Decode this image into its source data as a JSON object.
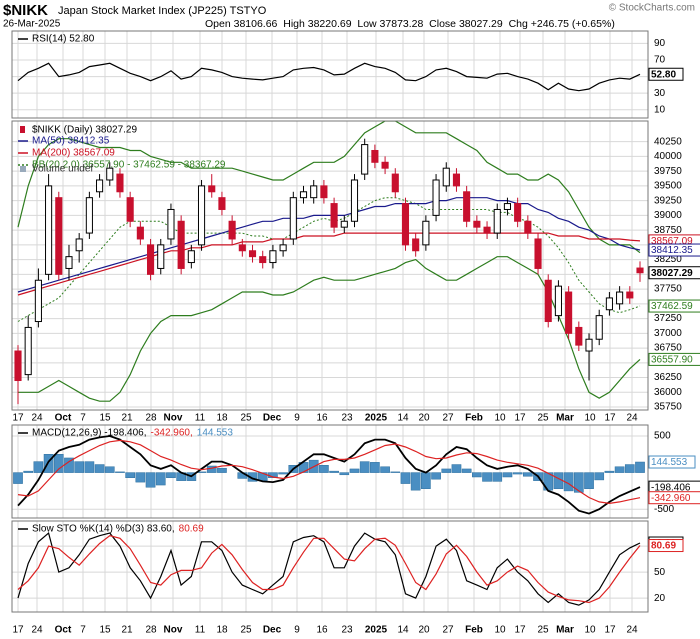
{
  "header": {
    "symbol": "$NIKK",
    "name": "Japan Stock Market Index (JP225) TSTYO",
    "date": "26-Mar-2025",
    "quote": "Open 38106.66  High 38220.69  Low 37873.28  Close 38027.29  Chg +246.75 (+0.65%)",
    "credit": "© StockCharts.com"
  },
  "dates": [
    "17",
    "24",
    "Oct",
    "7",
    "15",
    "21",
    "28",
    "Nov",
    "11",
    "18",
    "25",
    "Dec",
    "9",
    "16",
    "23",
    "2025",
    "14",
    "20",
    "27",
    "Feb",
    "10",
    "17",
    "25",
    "Mar",
    "10",
    "17",
    "24"
  ],
  "chart_data": [
    {
      "type": "line",
      "ylim": [
        0,
        105
      ],
      "yticks": [
        90,
        70,
        50,
        30,
        10
      ],
      "series": [
        {
          "name": "RSI(14) 52.80",
          "color": "#000000",
          "value_label": "52.80",
          "values": [
            45,
            55,
            60,
            66,
            50,
            52,
            55,
            62,
            64,
            66,
            60,
            54,
            50,
            45,
            50,
            57,
            47,
            50,
            60,
            58,
            55,
            50,
            48,
            47,
            46,
            48,
            50,
            58,
            60,
            61,
            58,
            52,
            53,
            60,
            66,
            62,
            60,
            55,
            46,
            45,
            50,
            58,
            60,
            56,
            50,
            49,
            48,
            53,
            54,
            50,
            47,
            42,
            34,
            42,
            35,
            33,
            35,
            42,
            46,
            48,
            47,
            52.8
          ]
        }
      ]
    },
    {
      "type": "candlestick",
      "name": "$NIKK (Daily) 38027.29",
      "up_color": "#000000",
      "down_color": "#c8102e",
      "volume": "Volume undef",
      "ylim": [
        35700,
        40600
      ],
      "yticks": [
        40250,
        40000,
        39750,
        39500,
        39250,
        39000,
        38750,
        38500,
        38250,
        38000,
        37750,
        37500,
        37250,
        37000,
        36750,
        36500,
        36250,
        36000,
        35750
      ],
      "open": [
        36700,
        36300,
        37200,
        38000,
        39300,
        38100,
        38400,
        38700,
        39400,
        39600,
        39700,
        39300,
        38800,
        38500,
        38100,
        38600,
        38900,
        38200,
        38500,
        39500,
        39300,
        38900,
        38500,
        38400,
        38300,
        38200,
        38400,
        38600,
        39300,
        39300,
        39500,
        39200,
        38800,
        38900,
        39700,
        40100,
        39900,
        39700,
        39200,
        38600,
        38500,
        39000,
        39500,
        39700,
        39400,
        38900,
        38800,
        38700,
        39100,
        39200,
        38900,
        38600,
        37900,
        37300,
        37700,
        37100,
        36700,
        36900,
        37400,
        37500,
        37700,
        38106.66
      ],
      "high": [
        36800,
        37300,
        38100,
        39700,
        39400,
        38500,
        38700,
        39400,
        39700,
        39900,
        39800,
        39400,
        38900,
        38600,
        38600,
        39200,
        39000,
        38500,
        39600,
        39700,
        39400,
        39000,
        38600,
        38500,
        38400,
        38500,
        38600,
        39400,
        39500,
        39600,
        39600,
        39300,
        39000,
        39700,
        40300,
        40200,
        40000,
        39800,
        39300,
        38700,
        39000,
        39700,
        39900,
        39800,
        39500,
        39000,
        38900,
        39200,
        39300,
        39300,
        39000,
        38700,
        38000,
        37900,
        37800,
        37200,
        37000,
        37400,
        37700,
        37800,
        37800,
        38220.69
      ],
      "low": [
        35800,
        36200,
        37100,
        37900,
        37900,
        37900,
        38200,
        38600,
        39300,
        39500,
        39300,
        38800,
        38500,
        37900,
        38000,
        38500,
        38000,
        38100,
        38400,
        39300,
        39000,
        38500,
        38300,
        38200,
        38100,
        38100,
        38300,
        38500,
        39200,
        39200,
        39200,
        38700,
        38700,
        38800,
        39600,
        39800,
        39700,
        39300,
        38400,
        38300,
        38400,
        38900,
        39400,
        39400,
        38800,
        38700,
        38600,
        38600,
        39000,
        38800,
        38600,
        38000,
        37100,
        37200,
        36900,
        36700,
        36200,
        36800,
        37300,
        37400,
        37500,
        37873.28
      ],
      "close": [
        36200,
        37100,
        37900,
        39500,
        38000,
        38300,
        38600,
        39300,
        39600,
        39800,
        39400,
        38900,
        38600,
        38000,
        38500,
        39100,
        38100,
        38400,
        39500,
        39400,
        39100,
        38600,
        38400,
        38300,
        38200,
        38400,
        38500,
        39300,
        39400,
        39500,
        39300,
        38800,
        38900,
        39600,
        40200,
        39900,
        39800,
        39400,
        38500,
        38400,
        38900,
        39600,
        39800,
        39500,
        38900,
        38800,
        38700,
        39100,
        39200,
        38900,
        38700,
        38100,
        37200,
        37800,
        37000,
        36800,
        36900,
        37300,
        37600,
        37700,
        37600,
        38027.29
      ],
      "series": [
        {
          "name": "MA(50) 38412.35",
          "color": "#1a1a8c",
          "values": [
            37700,
            37750,
            37800,
            37850,
            37900,
            37950,
            38000,
            38050,
            38100,
            38150,
            38200,
            38250,
            38300,
            38350,
            38400,
            38450,
            38500,
            38550,
            38600,
            38650,
            38700,
            38750,
            38800,
            38850,
            38900,
            38900,
            38950,
            38950,
            38950,
            39000,
            39000,
            39000,
            39000,
            39050,
            39100,
            39150,
            39150,
            39200,
            39200,
            39200,
            39200,
            39250,
            39250,
            39300,
            39300,
            39300,
            39300,
            39250,
            39250,
            39200,
            39200,
            39100,
            39050,
            38950,
            38900,
            38800,
            38750,
            38650,
            38600,
            38500,
            38450,
            38412.35
          ]
        },
        {
          "name": "MA(200) 38567.09",
          "color": "#cc1122",
          "values": [
            37650,
            37700,
            37750,
            37800,
            37850,
            37900,
            37950,
            38000,
            38050,
            38100,
            38150,
            38200,
            38250,
            38300,
            38350,
            38400,
            38400,
            38450,
            38450,
            38500,
            38500,
            38500,
            38550,
            38550,
            38550,
            38600,
            38600,
            38600,
            38650,
            38650,
            38650,
            38650,
            38700,
            38700,
            38700,
            38700,
            38700,
            38700,
            38700,
            38700,
            38700,
            38700,
            38700,
            38700,
            38700,
            38700,
            38700,
            38700,
            38700,
            38700,
            38700,
            38700,
            38700,
            38650,
            38650,
            38650,
            38600,
            38600,
            38600,
            38600,
            38580,
            38567.09
          ]
        }
      ],
      "bands": {
        "name": "BB(20,2.0) 36557.90 - 37462.59 - 38367.29",
        "color": "#2e7d1e",
        "value_labels": {
          "middle": "37462.59",
          "lower": "36557.90"
        },
        "upper": [
          38800,
          39500,
          40000,
          40200,
          40300,
          40300,
          40250,
          40200,
          40150,
          40150,
          40150,
          40100,
          40100,
          40000,
          39950,
          39900,
          39900,
          39800,
          39800,
          39800,
          39800,
          39800,
          39750,
          39700,
          39650,
          39600,
          39600,
          39700,
          39800,
          39900,
          39900,
          39900,
          40000,
          40200,
          40400,
          40500,
          40600,
          40600,
          40500,
          40400,
          40400,
          40400,
          40400,
          40300,
          40200,
          40100,
          39900,
          39800,
          39700,
          39700,
          39600,
          39600,
          39700,
          39600,
          39400,
          39100,
          38800,
          38600,
          38500,
          38500,
          38500,
          38367.29
        ],
        "middle": [
          37200,
          37300,
          37400,
          37500,
          37600,
          37800,
          38000,
          38200,
          38400,
          38600,
          38800,
          38900,
          38900,
          38900,
          38900,
          38800,
          38700,
          38700,
          38700,
          38700,
          38700,
          38700,
          38700,
          38650,
          38650,
          38600,
          38600,
          38700,
          38800,
          38900,
          38950,
          38900,
          38950,
          39050,
          39150,
          39250,
          39300,
          39300,
          39250,
          39200,
          39100,
          39100,
          39100,
          39100,
          39100,
          39100,
          39100,
          39050,
          39050,
          38950,
          38900,
          38800,
          38650,
          38450,
          38200,
          37900,
          37700,
          37500,
          37400,
          37350,
          37400,
          37462.59
        ],
        "lower": [
          36000,
          36000,
          36000,
          36100,
          36200,
          36100,
          36000,
          35900,
          35850,
          35850,
          36000,
          36300,
          36700,
          37000,
          37200,
          37300,
          37300,
          37300,
          37350,
          37400,
          37500,
          37600,
          37700,
          37700,
          37700,
          37650,
          37650,
          37700,
          37800,
          37900,
          37950,
          37900,
          37900,
          37900,
          37950,
          38000,
          38050,
          38100,
          38200,
          38250,
          38100,
          38000,
          37900,
          37900,
          38000,
          38100,
          38200,
          38300,
          38300,
          38200,
          38100,
          38000,
          37700,
          37300,
          36900,
          36400,
          36000,
          35900,
          36000,
          36200,
          36400,
          36557.9
        ]
      }
    },
    {
      "type": "macd",
      "ylim": [
        -620,
        650
      ],
      "yticks": [
        500,
        -500
      ],
      "series": [
        {
          "name": "MACD(12,26,9) -198.406,",
          "color": "#000000",
          "values": [
            -450,
            -300,
            -100,
            150,
            300,
            350,
            380,
            450,
            480,
            500,
            450,
            350,
            250,
            100,
            50,
            100,
            0,
            -50,
            50,
            150,
            150,
            100,
            0,
            -80,
            -120,
            -130,
            -100,
            50,
            150,
            250,
            250,
            200,
            150,
            250,
            400,
            450,
            450,
            400,
            200,
            50,
            0,
            100,
            250,
            350,
            320,
            200,
            100,
            50,
            80,
            100,
            50,
            -50,
            -250,
            -300,
            -400,
            -520,
            -560,
            -500,
            -400,
            -320,
            -260,
            -198.406
          ]
        },
        {
          "name": "-342.960,",
          "color": "#dd2222",
          "value_label": "-342.960",
          "values": [
            -300,
            -320,
            -250,
            -100,
            50,
            150,
            230,
            300,
            370,
            420,
            440,
            420,
            380,
            300,
            220,
            170,
            110,
            60,
            40,
            60,
            90,
            100,
            80,
            40,
            -10,
            -60,
            -80,
            -50,
            10,
            80,
            150,
            180,
            180,
            200,
            250,
            310,
            370,
            390,
            350,
            290,
            220,
            190,
            200,
            240,
            270,
            260,
            220,
            170,
            140,
            120,
            100,
            60,
            -10,
            -80,
            -150,
            -250,
            -340,
            -400,
            -420,
            -400,
            -370,
            -342.96
          ]
        },
        {
          "name": "144.553",
          "color": "#4a8ec2",
          "kind": "histogram",
          "values": [
            -150,
            20,
            150,
            250,
            250,
            200,
            150,
            150,
            110,
            80,
            10,
            -70,
            -130,
            -200,
            -170,
            -70,
            -110,
            -110,
            10,
            90,
            60,
            0,
            -80,
            -120,
            -110,
            -70,
            -20,
            100,
            140,
            170,
            100,
            20,
            -30,
            50,
            150,
            140,
            80,
            10,
            -150,
            -240,
            -220,
            -90,
            50,
            110,
            50,
            -60,
            -120,
            -120,
            -60,
            -20,
            -50,
            -110,
            -240,
            -220,
            -250,
            -270,
            -220,
            -100,
            20,
            80,
            110,
            144.553
          ]
        }
      ]
    },
    {
      "type": "line",
      "ylim": [
        4,
        109
      ],
      "yticks": [
        80,
        50,
        20
      ],
      "series": [
        {
          "name": "Slow STO %K(14) %D(3) 83.60,",
          "color": "#000000",
          "value_label": "83.60",
          "values": [
            20,
            60,
            85,
            95,
            50,
            55,
            70,
            88,
            92,
            95,
            80,
            55,
            40,
            20,
            45,
            75,
            35,
            45,
            85,
            85,
            75,
            50,
            35,
            30,
            25,
            35,
            45,
            85,
            90,
            92,
            85,
            55,
            55,
            80,
            95,
            88,
            85,
            70,
            25,
            20,
            45,
            80,
            88,
            75,
            40,
            35,
            30,
            55,
            65,
            50,
            40,
            25,
            15,
            25,
            15,
            12,
            18,
            30,
            50,
            70,
            78,
            83.6
          ]
        },
        {
          "name": "80.69",
          "color": "#dd2222",
          "values": [
            30,
            40,
            55,
            80,
            77,
            67,
            58,
            71,
            83,
            92,
            89,
            77,
            58,
            38,
            35,
            47,
            52,
            52,
            55,
            72,
            82,
            70,
            53,
            38,
            30,
            30,
            35,
            55,
            73,
            89,
            89,
            77,
            65,
            63,
            77,
            88,
            89,
            81,
            60,
            38,
            30,
            48,
            71,
            81,
            68,
            50,
            35,
            40,
            50,
            57,
            52,
            38,
            27,
            22,
            18,
            17,
            15,
            20,
            33,
            50,
            66,
            80.69
          ]
        }
      ]
    }
  ]
}
